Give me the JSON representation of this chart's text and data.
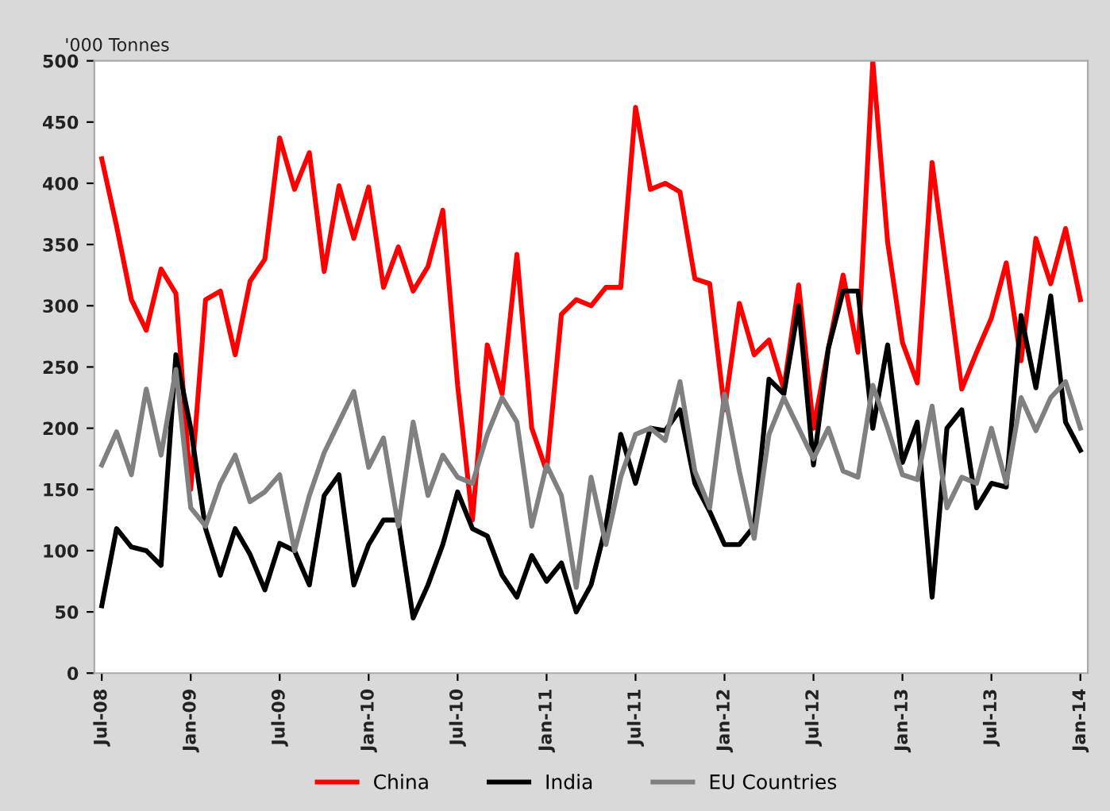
{
  "chart_data": {
    "type": "line",
    "ylabel": "'000 Tonnes",
    "categories": [
      "Jul-08",
      null,
      null,
      null,
      null,
      null,
      "Jan-09",
      null,
      null,
      null,
      null,
      null,
      "Jul-09",
      null,
      null,
      null,
      null,
      null,
      "Jan-10",
      null,
      null,
      null,
      null,
      null,
      "Jul-10",
      null,
      null,
      null,
      null,
      null,
      "Jan-11",
      null,
      null,
      null,
      null,
      null,
      "Jul-11",
      null,
      null,
      null,
      null,
      null,
      "Jan-12",
      null,
      null,
      null,
      null,
      null,
      "Jul-12",
      null,
      null,
      null,
      null,
      null,
      "Jan-13",
      null,
      null,
      null,
      null,
      null,
      "Jul-13",
      null,
      null,
      null,
      null,
      null,
      "Jan-14"
    ],
    "series": [
      {
        "name": "China",
        "color": "#ff0000",
        "values": [
          420,
          365,
          305,
          280,
          330,
          310,
          150,
          305,
          312,
          260,
          320,
          338,
          437,
          395,
          425,
          328,
          398,
          355,
          397,
          315,
          348,
          312,
          332,
          378,
          235,
          125,
          268,
          228,
          342,
          200,
          165,
          293,
          305,
          300,
          315,
          315,
          462,
          395,
          400,
          393,
          322,
          318,
          215,
          302,
          260,
          272,
          232,
          317,
          200,
          265,
          325,
          262,
          500,
          352,
          270,
          237,
          417,
          325,
          232,
          262,
          290,
          335,
          255,
          355,
          318,
          363,
          305
        ]
      },
      {
        "name": "India",
        "color": "#000000",
        "values": [
          55,
          118,
          103,
          100,
          88,
          260,
          200,
          118,
          80,
          118,
          97,
          68,
          106,
          100,
          72,
          145,
          162,
          72,
          105,
          125,
          125,
          45,
          72,
          105,
          148,
          118,
          112,
          80,
          62,
          96,
          75,
          90,
          50,
          72,
          120,
          195,
          155,
          200,
          198,
          215,
          155,
          132,
          105,
          105,
          120,
          240,
          228,
          300,
          170,
          265,
          312,
          312,
          200,
          268,
          172,
          205,
          62,
          200,
          215,
          135,
          155,
          152,
          292,
          233,
          308,
          205,
          182
        ]
      },
      {
        "name": "EU Countries",
        "color": "#808080",
        "values": [
          170,
          197,
          162,
          232,
          178,
          248,
          135,
          120,
          155,
          178,
          140,
          148,
          162,
          100,
          145,
          180,
          205,
          230,
          168,
          192,
          120,
          205,
          145,
          178,
          160,
          155,
          195,
          225,
          205,
          120,
          170,
          145,
          70,
          160,
          105,
          160,
          195,
          200,
          190,
          238,
          165,
          135,
          228,
          165,
          110,
          195,
          225,
          200,
          175,
          200,
          165,
          160,
          235,
          200,
          162,
          158,
          218,
          135,
          160,
          155,
          200,
          155,
          225,
          198,
          225,
          238,
          200
        ]
      }
    ],
    "ylim": [
      0,
      500
    ],
    "yticks": [
      0,
      50,
      100,
      150,
      200,
      250,
      300,
      350,
      400,
      450,
      500
    ],
    "grid": false,
    "legend": "bottom",
    "marker": "none",
    "line_style": "solid"
  }
}
